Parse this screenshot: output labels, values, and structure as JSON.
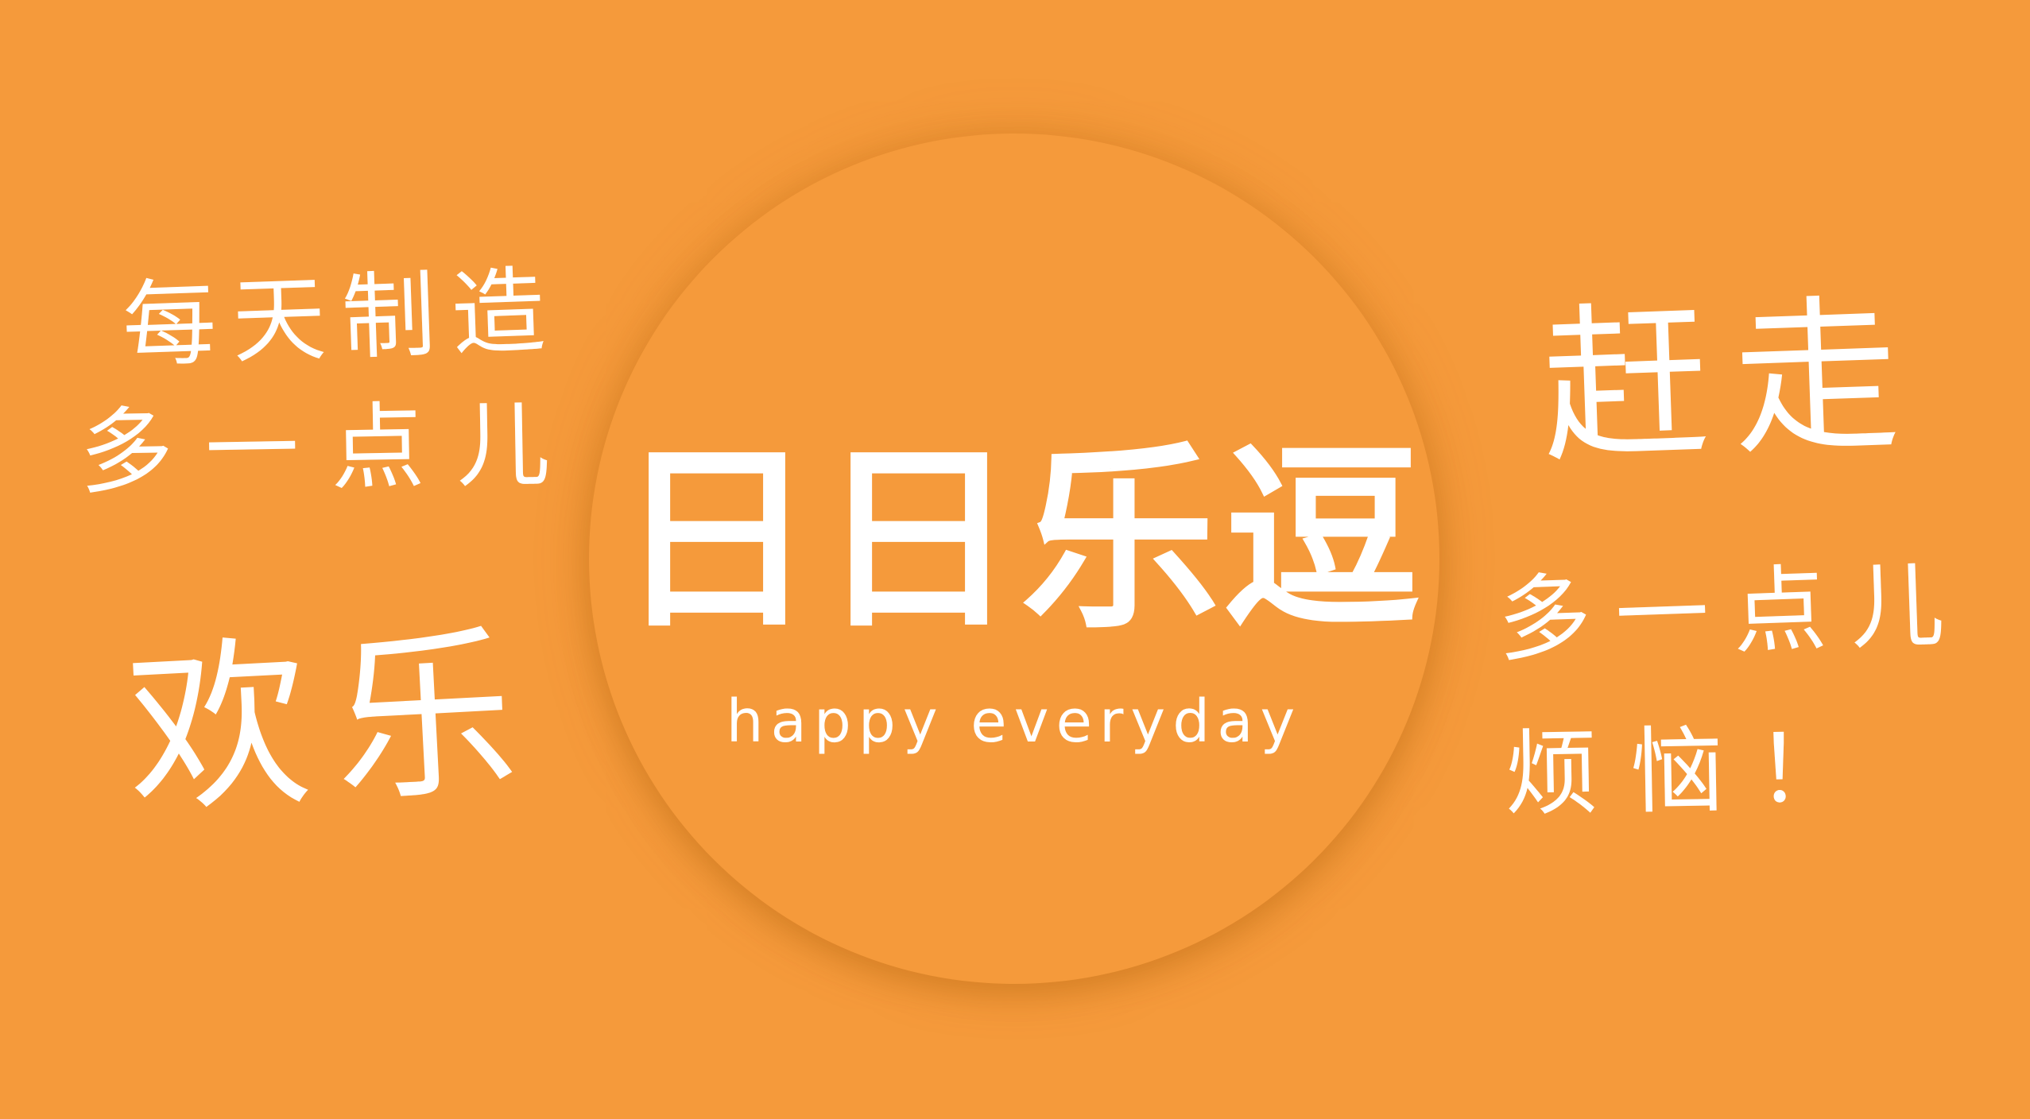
{
  "colors": {
    "background": "#F59A3B",
    "text": "#FFFFFF"
  },
  "logo": {
    "title": "日日乐逗",
    "subtitle": "happy everyday"
  },
  "left_text": {
    "line1": "每天制造",
    "line2": "多一点儿",
    "big": "欢乐"
  },
  "right_text": {
    "big": "赶走",
    "line2": "多一点儿",
    "line3": "烦恼！"
  }
}
